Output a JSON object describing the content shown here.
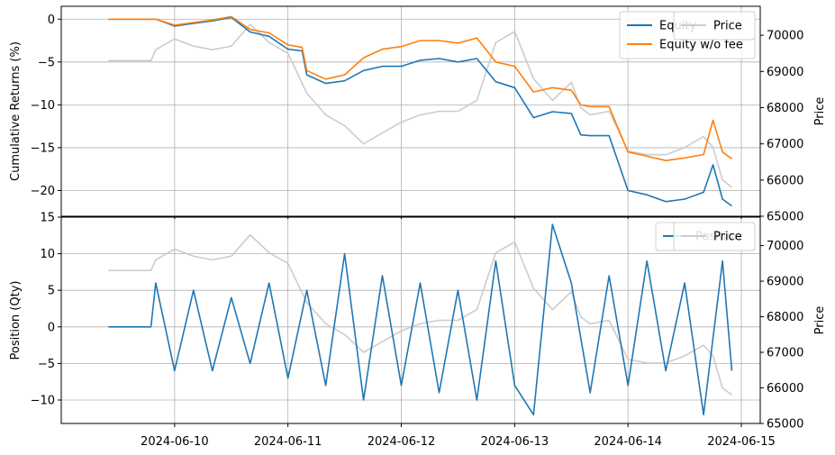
{
  "chart_data": [
    {
      "type": "line",
      "panel": "top",
      "ylabel": "Cumulative Returns (%)",
      "y2label": "Price",
      "ylim": [
        -23,
        1.5
      ],
      "y2lim": [
        65000,
        70800
      ],
      "yticks": [
        "0",
        "−5",
        "−10",
        "−15",
        "−20"
      ],
      "yticks_values": [
        0,
        -5,
        -10,
        -15,
        -20
      ],
      "y2ticks": [
        "65000",
        "66000",
        "67000",
        "68000",
        "69000",
        "70000"
      ],
      "y2ticks_values": [
        65000,
        66000,
        67000,
        68000,
        69000,
        70000
      ],
      "xlim": [
        "2024-06-09 00:00",
        "2024-06-15 04:00"
      ],
      "xticks": [
        "2024-06-10",
        "2024-06-11",
        "2024-06-12",
        "2024-06-13",
        "2024-06-14",
        "2024-06-15"
      ],
      "grid": true,
      "legend_left": {
        "position": "top-right",
        "entries": [
          "Equity",
          "Equity w/o fee"
        ]
      },
      "legend_right": {
        "position": "top-right",
        "entries": [
          "Price"
        ]
      },
      "series": [
        {
          "name": "Equity",
          "axis": "left",
          "color": "#1f77b4",
          "x": [
            "2024-06-09 10:00",
            "2024-06-09 20:00",
            "2024-06-10 00:00",
            "2024-06-10 04:00",
            "2024-06-10 08:00",
            "2024-06-10 12:00",
            "2024-06-10 16:00",
            "2024-06-10 20:00",
            "2024-06-11 00:00",
            "2024-06-11 03:00",
            "2024-06-11 04:00",
            "2024-06-11 08:00",
            "2024-06-11 12:00",
            "2024-06-11 16:00",
            "2024-06-11 20:00",
            "2024-06-12 00:00",
            "2024-06-12 04:00",
            "2024-06-12 08:00",
            "2024-06-12 12:00",
            "2024-06-12 16:00",
            "2024-06-12 20:00",
            "2024-06-13 00:00",
            "2024-06-13 04:00",
            "2024-06-13 08:00",
            "2024-06-13 12:00",
            "2024-06-13 14:00",
            "2024-06-13 16:00",
            "2024-06-13 20:00",
            "2024-06-14 00:00",
            "2024-06-14 04:00",
            "2024-06-14 08:00",
            "2024-06-14 12:00",
            "2024-06-14 16:00",
            "2024-06-14 18:00",
            "2024-06-14 20:00",
            "2024-06-14 22:00"
          ],
          "y": [
            0,
            0,
            -0.8,
            -0.5,
            -0.2,
            0.2,
            -1.5,
            -2.0,
            -3.5,
            -3.7,
            -6.5,
            -7.5,
            -7.2,
            -6.0,
            -5.5,
            -5.5,
            -4.8,
            -4.6,
            -5.0,
            -4.6,
            -7.3,
            -8.0,
            -11.5,
            -10.8,
            -11.0,
            -13.5,
            -13.6,
            -13.6,
            -20.0,
            -20.5,
            -21.3,
            -21.0,
            -20.2,
            -17.0,
            -21.0,
            -21.8
          ]
        },
        {
          "name": "Equity w/o fee",
          "axis": "left",
          "color": "#ff7f0e",
          "x": [
            "2024-06-09 10:00",
            "2024-06-09 20:00",
            "2024-06-10 00:00",
            "2024-06-10 04:00",
            "2024-06-10 08:00",
            "2024-06-10 12:00",
            "2024-06-10 16:00",
            "2024-06-10 20:00",
            "2024-06-11 00:00",
            "2024-06-11 03:00",
            "2024-06-11 04:00",
            "2024-06-11 08:00",
            "2024-06-11 12:00",
            "2024-06-11 16:00",
            "2024-06-11 20:00",
            "2024-06-12 00:00",
            "2024-06-12 04:00",
            "2024-06-12 08:00",
            "2024-06-12 12:00",
            "2024-06-12 16:00",
            "2024-06-12 20:00",
            "2024-06-13 00:00",
            "2024-06-13 04:00",
            "2024-06-13 08:00",
            "2024-06-13 12:00",
            "2024-06-13 14:00",
            "2024-06-13 16:00",
            "2024-06-13 20:00",
            "2024-06-14 00:00",
            "2024-06-14 04:00",
            "2024-06-14 08:00",
            "2024-06-14 12:00",
            "2024-06-14 16:00",
            "2024-06-14 18:00",
            "2024-06-14 20:00",
            "2024-06-14 22:00"
          ],
          "y": [
            0,
            0,
            -0.7,
            -0.4,
            -0.1,
            0.3,
            -1.2,
            -1.6,
            -3.0,
            -3.3,
            -6.0,
            -7.0,
            -6.5,
            -4.5,
            -3.5,
            -3.2,
            -2.5,
            -2.5,
            -2.8,
            -2.2,
            -5.0,
            -5.5,
            -8.5,
            -8.0,
            -8.3,
            -10.0,
            -10.2,
            -10.2,
            -15.5,
            -16.0,
            -16.5,
            -16.2,
            -15.8,
            -11.8,
            -15.5,
            -16.3
          ]
        },
        {
          "name": "Price",
          "axis": "right",
          "color": "#cccccc",
          "x": [
            "2024-06-09 10:00",
            "2024-06-09 19:00",
            "2024-06-09 20:00",
            "2024-06-10 00:00",
            "2024-06-10 04:00",
            "2024-06-10 08:00",
            "2024-06-10 12:00",
            "2024-06-10 16:00",
            "2024-06-10 20:00",
            "2024-06-11 00:00",
            "2024-06-11 04:00",
            "2024-06-11 08:00",
            "2024-06-11 12:00",
            "2024-06-11 16:00",
            "2024-06-11 20:00",
            "2024-06-12 00:00",
            "2024-06-12 04:00",
            "2024-06-12 08:00",
            "2024-06-12 12:00",
            "2024-06-12 16:00",
            "2024-06-12 20:00",
            "2024-06-13 00:00",
            "2024-06-13 04:00",
            "2024-06-13 08:00",
            "2024-06-13 12:00",
            "2024-06-13 14:00",
            "2024-06-13 16:00",
            "2024-06-13 20:00",
            "2024-06-14 00:00",
            "2024-06-14 04:00",
            "2024-06-14 08:00",
            "2024-06-14 12:00",
            "2024-06-14 16:00",
            "2024-06-14 18:00",
            "2024-06-14 20:00",
            "2024-06-14 22:00"
          ],
          "y": [
            69300,
            69300,
            69600,
            69900,
            69700,
            69600,
            69700,
            70300,
            69800,
            69500,
            68400,
            67800,
            67500,
            67000,
            67300,
            67600,
            67800,
            67900,
            67900,
            68200,
            69800,
            70100,
            68800,
            68200,
            68700,
            68000,
            67800,
            67900,
            66800,
            66700,
            66700,
            66900,
            67200,
            66900,
            66000,
            65800
          ]
        }
      ]
    },
    {
      "type": "line",
      "panel": "bottom",
      "ylabel": "Position (Qty)",
      "y2label": "Price",
      "ylim": [
        -13.2,
        15
      ],
      "y2lim": [
        65000,
        70800
      ],
      "yticks": [
        "15",
        "10",
        "5",
        "0",
        "−5",
        "−10"
      ],
      "yticks_values": [
        15,
        10,
        5,
        0,
        -5,
        -10
      ],
      "y2ticks": [
        "65000",
        "66000",
        "67000",
        "68000",
        "69000",
        "70000"
      ],
      "y2ticks_values": [
        65000,
        66000,
        67000,
        68000,
        69000,
        70000
      ],
      "xlim": [
        "2024-06-09 00:00",
        "2024-06-15 04:00"
      ],
      "xticks": [
        "2024-06-10",
        "2024-06-11",
        "2024-06-12",
        "2024-06-13",
        "2024-06-14",
        "2024-06-15"
      ],
      "grid": true,
      "legend_left": {
        "position": "top-right",
        "entries": [
          "Position"
        ]
      },
      "legend_right": {
        "position": "top-right",
        "entries": [
          "Price"
        ]
      },
      "series": [
        {
          "name": "Position",
          "axis": "left",
          "color": "#1f77b4",
          "x": [
            "2024-06-09 10:00",
            "2024-06-09 19:00",
            "2024-06-09 20:00",
            "2024-06-10 00:00",
            "2024-06-10 04:00",
            "2024-06-10 08:00",
            "2024-06-10 12:00",
            "2024-06-10 16:00",
            "2024-06-10 20:00",
            "2024-06-11 00:00",
            "2024-06-11 04:00",
            "2024-06-11 08:00",
            "2024-06-11 12:00",
            "2024-06-11 16:00",
            "2024-06-11 20:00",
            "2024-06-12 00:00",
            "2024-06-12 04:00",
            "2024-06-12 08:00",
            "2024-06-12 12:00",
            "2024-06-12 16:00",
            "2024-06-12 20:00",
            "2024-06-13 00:00",
            "2024-06-13 04:00",
            "2024-06-13 08:00",
            "2024-06-13 12:00",
            "2024-06-13 16:00",
            "2024-06-13 20:00",
            "2024-06-14 00:00",
            "2024-06-14 04:00",
            "2024-06-14 08:00",
            "2024-06-14 12:00",
            "2024-06-14 16:00",
            "2024-06-14 20:00",
            "2024-06-14 22:00"
          ],
          "y": [
            0,
            0,
            6,
            -6,
            5,
            -6,
            4,
            -5,
            6,
            -7,
            5,
            -8,
            10,
            -10,
            7,
            -8,
            6,
            -9,
            5,
            -10,
            9,
            -8,
            -12,
            14,
            6,
            -9,
            7,
            -8,
            9,
            -6,
            6,
            -12,
            9,
            -6
          ]
        },
        {
          "name": "Price",
          "axis": "right",
          "color": "#cccccc",
          "x": [
            "2024-06-09 10:00",
            "2024-06-09 19:00",
            "2024-06-09 20:00",
            "2024-06-10 00:00",
            "2024-06-10 04:00",
            "2024-06-10 08:00",
            "2024-06-10 12:00",
            "2024-06-10 16:00",
            "2024-06-10 20:00",
            "2024-06-11 00:00",
            "2024-06-11 04:00",
            "2024-06-11 08:00",
            "2024-06-11 12:00",
            "2024-06-11 16:00",
            "2024-06-11 20:00",
            "2024-06-12 00:00",
            "2024-06-12 04:00",
            "2024-06-12 08:00",
            "2024-06-12 12:00",
            "2024-06-12 16:00",
            "2024-06-12 20:00",
            "2024-06-13 00:00",
            "2024-06-13 04:00",
            "2024-06-13 08:00",
            "2024-06-13 12:00",
            "2024-06-13 14:00",
            "2024-06-13 16:00",
            "2024-06-13 20:00",
            "2024-06-14 00:00",
            "2024-06-14 04:00",
            "2024-06-14 08:00",
            "2024-06-14 12:00",
            "2024-06-14 16:00",
            "2024-06-14 18:00",
            "2024-06-14 20:00",
            "2024-06-14 22:00"
          ],
          "y": [
            69300,
            69300,
            69600,
            69900,
            69700,
            69600,
            69700,
            70300,
            69800,
            69500,
            68400,
            67800,
            67500,
            67000,
            67300,
            67600,
            67800,
            67900,
            67900,
            68200,
            69800,
            70100,
            68800,
            68200,
            68700,
            68000,
            67800,
            67900,
            66800,
            66700,
            66700,
            66900,
            67200,
            66900,
            66000,
            65800
          ]
        }
      ]
    }
  ]
}
